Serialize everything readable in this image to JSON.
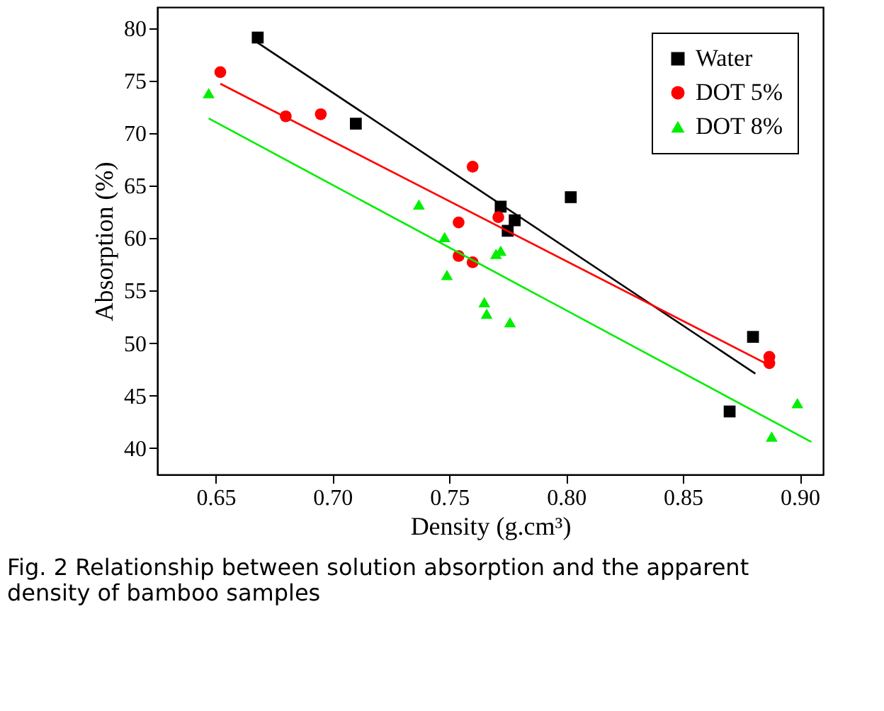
{
  "chart_data": {
    "type": "scatter",
    "xlabel": "Density (g.cm³)",
    "ylabel": "Absorption (%)",
    "xlim": [
      0.625,
      0.91
    ],
    "xticks": [
      0.65,
      {
        "value": 0.7,
        "label": "0.70"
      },
      0.75,
      {
        "value": 0.8,
        "label": "0.80"
      },
      0.85,
      {
        "value": 0.9,
        "label": "0.90"
      }
    ],
    "ylim": [
      37.5,
      82
    ],
    "yticks": [
      40,
      45,
      50,
      55,
      60,
      65,
      70,
      75,
      80
    ],
    "grid": false,
    "legend": "top right",
    "annotations": [
      "Fig. 2 Relationship between solution absorption and the apparent density of bamboo samples"
    ],
    "series": [
      {
        "name": "Water",
        "color": "#000000",
        "marker": "square",
        "x": [
          0.668,
          0.71,
          0.772,
          0.775,
          0.778,
          0.802,
          0.87,
          0.88
        ],
        "values": [
          79.1,
          70.9,
          63.0,
          60.7,
          61.7,
          63.9,
          43.5,
          50.6
        ]
      },
      {
        "name": "DOT 5%",
        "color": "#ff0000",
        "marker": "circle",
        "x": [
          0.652,
          0.68,
          0.695,
          0.76,
          0.754,
          0.754,
          0.76,
          0.771,
          0.887,
          0.887
        ],
        "values": [
          75.8,
          71.6,
          71.8,
          66.8,
          61.5,
          58.3,
          57.7,
          62.0,
          48.7,
          48.1
        ]
      },
      {
        "name": "DOT 8%",
        "color": "#00ee00",
        "marker": "triangle",
        "x": [
          0.647,
          0.737,
          0.748,
          0.749,
          0.765,
          0.766,
          0.77,
          0.772,
          0.776,
          0.888,
          0.899
        ],
        "values": [
          73.8,
          63.2,
          60.1,
          56.5,
          53.9,
          52.8,
          58.5,
          58.8,
          52.0,
          41.1,
          44.3
        ]
      },
      {
        "type": "line",
        "color": "#000000",
        "marker": "none",
        "x": [
          0.668,
          0.881
        ],
        "values": [
          78.6,
          47.1
        ]
      },
      {
        "type": "line",
        "color": "#ff0000",
        "marker": "none",
        "x": [
          0.652,
          0.887
        ],
        "values": [
          74.7,
          47.9
        ]
      },
      {
        "type": "line",
        "color": "#00ee00",
        "marker": "none",
        "x": [
          0.647,
          0.905
        ],
        "values": [
          71.4,
          40.6
        ]
      }
    ]
  }
}
